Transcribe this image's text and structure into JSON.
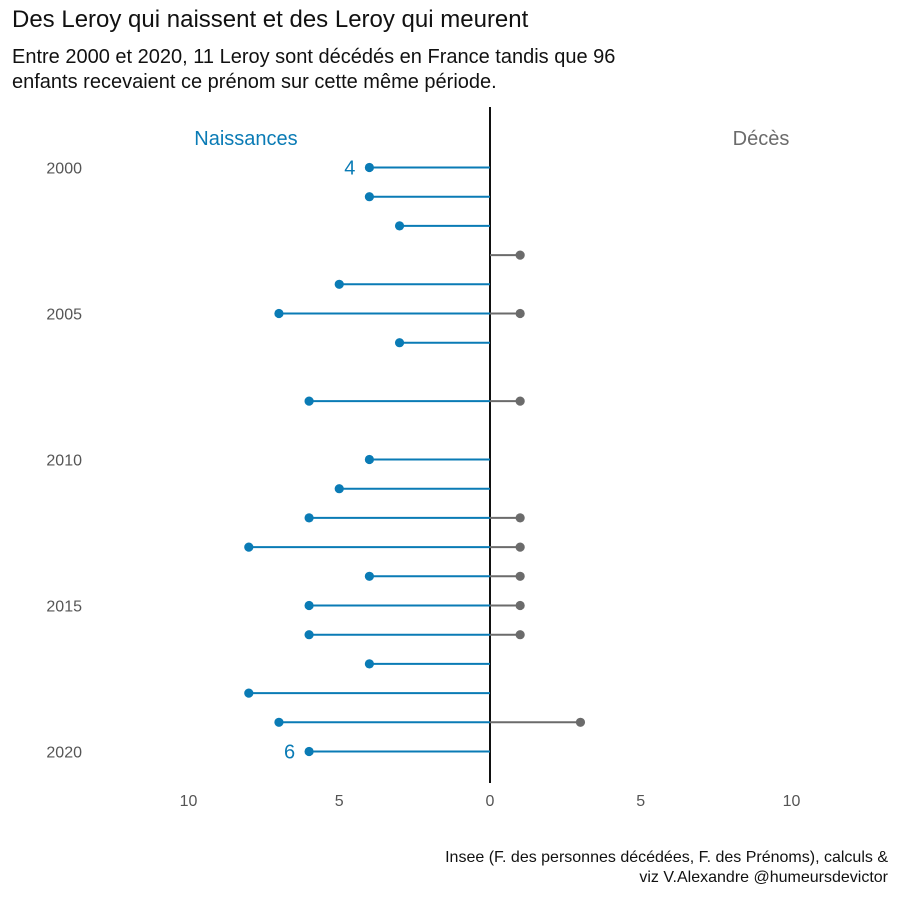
{
  "title": "Des Leroy qui naissent et des Leroy qui meurent",
  "subtitle_line1": "Entre 2000 et 2020, 11 Leroy sont décédés en France tandis que 96",
  "subtitle_line2": "enfants recevaient ce prénom sur cette même période.",
  "caption_line1": "Insee (F. des personnes décédées, F. des Prénoms), calculs &",
  "caption_line2": "viz V.Alexandre @humeursdevictor",
  "colors": {
    "births": "#0a7bb5",
    "deaths": "#6b6b6b",
    "axis": "#111111"
  },
  "chart_data": {
    "type": "lollipop",
    "direction": "horizontal-diverging",
    "left_label": "Naissances",
    "right_label": "Décès",
    "years": [
      2000,
      2001,
      2002,
      2003,
      2004,
      2005,
      2006,
      2007,
      2008,
      2009,
      2010,
      2011,
      2012,
      2013,
      2014,
      2015,
      2016,
      2017,
      2018,
      2019,
      2020
    ],
    "series": [
      {
        "name": "Naissances",
        "side": "left",
        "values": [
          4,
          4,
          3,
          0,
          5,
          7,
          3,
          0,
          6,
          0,
          4,
          5,
          6,
          8,
          4,
          6,
          6,
          4,
          8,
          7,
          6
        ]
      },
      {
        "name": "Décès",
        "side": "right",
        "values": [
          0,
          0,
          0,
          1,
          0,
          1,
          0,
          0,
          1,
          0,
          0,
          0,
          1,
          1,
          1,
          1,
          1,
          0,
          0,
          3,
          0
        ]
      }
    ],
    "y_ticks": [
      "2000",
      "2005",
      "2010",
      "2015",
      "2020"
    ],
    "x_ticks": [
      "10",
      "5",
      "0",
      "5",
      "10"
    ],
    "xlim": [
      -12,
      12
    ],
    "annotations": [
      {
        "year": 2000,
        "text": "4"
      },
      {
        "year": 2020,
        "text": "6"
      }
    ]
  }
}
